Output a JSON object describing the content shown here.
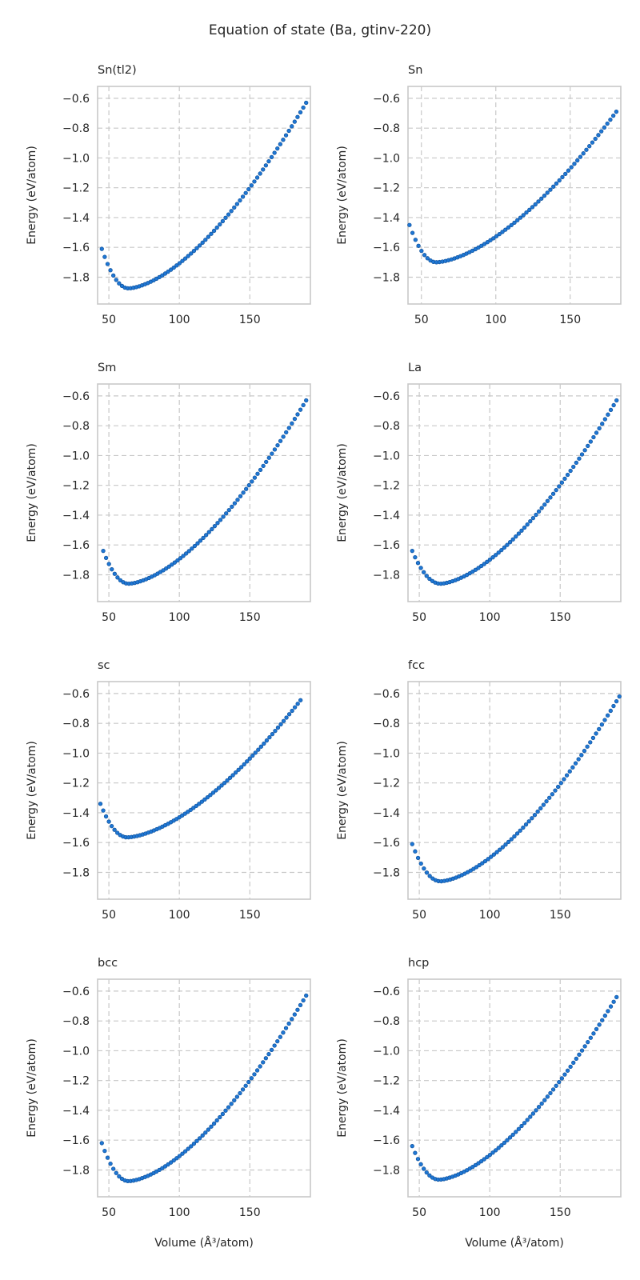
{
  "figure": {
    "title": "Equation of state (Ba, gtinv-220)",
    "xlabel": "Volume (Å³/atom)",
    "ylabel": "Energy (eV/atom)",
    "marker_color": "#1f77d4",
    "marker_edge": "#0d4f99",
    "grid_color": "#c8c8c8",
    "spine_color": "#c8c8c8"
  },
  "chart_data": [
    {
      "type": "scatter",
      "title": "Sn(tl2)",
      "xlim": [
        42,
        193
      ],
      "ylim": [
        -1.98,
        -0.52
      ],
      "xticks": [
        50,
        100,
        150
      ],
      "yticks": [
        -0.6,
        -0.8,
        -1.0,
        -1.2,
        -1.4,
        -1.6,
        -1.8
      ],
      "xticklabels": [
        "50",
        "100",
        "150"
      ],
      "yticklabels": [
        "−0.6",
        "−0.8",
        "−1.0",
        "−1.2",
        "−1.4",
        "−1.6",
        "−1.8"
      ],
      "grid": true,
      "xlabel": "",
      "ylabel": "Energy (eV/atom)",
      "x_start": 45,
      "x_end": 190,
      "n_points": 72,
      "v0": 64,
      "e_min": -1.875,
      "e_start": -1.61,
      "e_end": -0.63
    },
    {
      "type": "scatter",
      "title": "Sn",
      "xlim": [
        41,
        184
      ],
      "ylim": [
        -1.98,
        -0.52
      ],
      "xticks": [
        50,
        100,
        150
      ],
      "yticks": [
        -0.6,
        -0.8,
        -1.0,
        -1.2,
        -1.4,
        -1.6,
        -1.8
      ],
      "xticklabels": [
        "50",
        "100",
        "150"
      ],
      "yticklabels": [
        "−0.6",
        "−0.8",
        "−1.0",
        "−1.2",
        "−1.4",
        "−1.6",
        "−1.8"
      ],
      "grid": true,
      "xlabel": "",
      "ylabel": "Energy (eV/atom)",
      "x_start": 42,
      "x_end": 181,
      "n_points": 70,
      "v0": 60,
      "e_min": -1.7,
      "e_start": -1.45,
      "e_end": -0.69
    },
    {
      "type": "scatter",
      "title": "Sm",
      "xlim": [
        42,
        193
      ],
      "ylim": [
        -1.98,
        -0.52
      ],
      "xticks": [
        50,
        100,
        150
      ],
      "yticks": [
        -0.6,
        -0.8,
        -1.0,
        -1.2,
        -1.4,
        -1.6,
        -1.8
      ],
      "xticklabels": [
        "50",
        "100",
        "150"
      ],
      "yticklabels": [
        "−0.6",
        "−0.8",
        "−1.0",
        "−1.2",
        "−1.4",
        "−1.6",
        "−1.8"
      ],
      "grid": true,
      "xlabel": "",
      "ylabel": "Energy (eV/atom)",
      "x_start": 46,
      "x_end": 190,
      "n_points": 72,
      "v0": 64,
      "e_min": -1.86,
      "e_start": -1.64,
      "e_end": -0.63
    },
    {
      "type": "scatter",
      "title": "La",
      "xlim": [
        42,
        193
      ],
      "ylim": [
        -1.98,
        -0.52
      ],
      "xticks": [
        50,
        100,
        150
      ],
      "yticks": [
        -0.6,
        -0.8,
        -1.0,
        -1.2,
        -1.4,
        -1.6,
        -1.8
      ],
      "xticklabels": [
        "50",
        "100",
        "150"
      ],
      "yticklabels": [
        "−0.6",
        "−0.8",
        "−1.0",
        "−1.2",
        "−1.4",
        "−1.6",
        "−1.8"
      ],
      "grid": true,
      "xlabel": "",
      "ylabel": "Energy (eV/atom)",
      "x_start": 45,
      "x_end": 190,
      "n_points": 72,
      "v0": 65,
      "e_min": -1.86,
      "e_start": -1.64,
      "e_end": -0.63
    },
    {
      "type": "scatter",
      "title": "sc",
      "xlim": [
        42,
        193
      ],
      "ylim": [
        -1.98,
        -0.52
      ],
      "xticks": [
        50,
        100,
        150
      ],
      "yticks": [
        -0.6,
        -0.8,
        -1.0,
        -1.2,
        -1.4,
        -1.6,
        -1.8
      ],
      "xticklabels": [
        "50",
        "100",
        "150"
      ],
      "yticklabels": [
        "−0.6",
        "−0.8",
        "−1.0",
        "−1.2",
        "−1.4",
        "−1.6",
        "−1.8"
      ],
      "grid": true,
      "xlabel": "",
      "ylabel": "Energy (eV/atom)",
      "x_start": 44,
      "x_end": 186,
      "n_points": 72,
      "v0": 63,
      "e_min": -1.565,
      "e_start": -1.34,
      "e_end": -0.645
    },
    {
      "type": "scatter",
      "title": "fcc",
      "xlim": [
        42,
        193
      ],
      "ylim": [
        -1.98,
        -0.52
      ],
      "xticks": [
        50,
        100,
        150
      ],
      "yticks": [
        -0.6,
        -0.8,
        -1.0,
        -1.2,
        -1.4,
        -1.6,
        -1.8
      ],
      "xticklabels": [
        "50",
        "100",
        "150"
      ],
      "yticklabels": [
        "−0.6",
        "−0.8",
        "−1.0",
        "−1.2",
        "−1.4",
        "−1.6",
        "−1.8"
      ],
      "grid": true,
      "xlabel": "",
      "ylabel": "Energy (eV/atom)",
      "x_start": 45,
      "x_end": 192,
      "n_points": 72,
      "v0": 65,
      "e_min": -1.86,
      "e_start": -1.61,
      "e_end": -0.62
    },
    {
      "type": "scatter",
      "title": "bcc",
      "xlim": [
        42,
        193
      ],
      "ylim": [
        -1.98,
        -0.52
      ],
      "xticks": [
        50,
        100,
        150
      ],
      "yticks": [
        -0.6,
        -0.8,
        -1.0,
        -1.2,
        -1.4,
        -1.6,
        -1.8
      ],
      "xticklabels": [
        "50",
        "100",
        "150"
      ],
      "yticklabels": [
        "−0.6",
        "−0.8",
        "−1.0",
        "−1.2",
        "−1.4",
        "−1.6",
        "−1.8"
      ],
      "grid": true,
      "xlabel": "Volume (Å³/atom)",
      "ylabel": "Energy (eV/atom)",
      "x_start": 45,
      "x_end": 190,
      "n_points": 72,
      "v0": 64,
      "e_min": -1.875,
      "e_start": -1.62,
      "e_end": -0.63
    },
    {
      "type": "scatter",
      "title": "hcp",
      "xlim": [
        42,
        193
      ],
      "ylim": [
        -1.98,
        -0.52
      ],
      "xticks": [
        50,
        100,
        150
      ],
      "yticks": [
        -0.6,
        -0.8,
        -1.0,
        -1.2,
        -1.4,
        -1.6,
        -1.8
      ],
      "xticklabels": [
        "50",
        "100",
        "150"
      ],
      "yticklabels": [
        "−0.6",
        "−0.8",
        "−1.0",
        "−1.2",
        "−1.4",
        "−1.6",
        "−1.8"
      ],
      "grid": true,
      "xlabel": "Volume (Å³/atom)",
      "ylabel": "Energy (eV/atom)",
      "x_start": 45,
      "x_end": 190,
      "n_points": 72,
      "v0": 64,
      "e_min": -1.865,
      "e_start": -1.64,
      "e_end": -0.64
    }
  ]
}
